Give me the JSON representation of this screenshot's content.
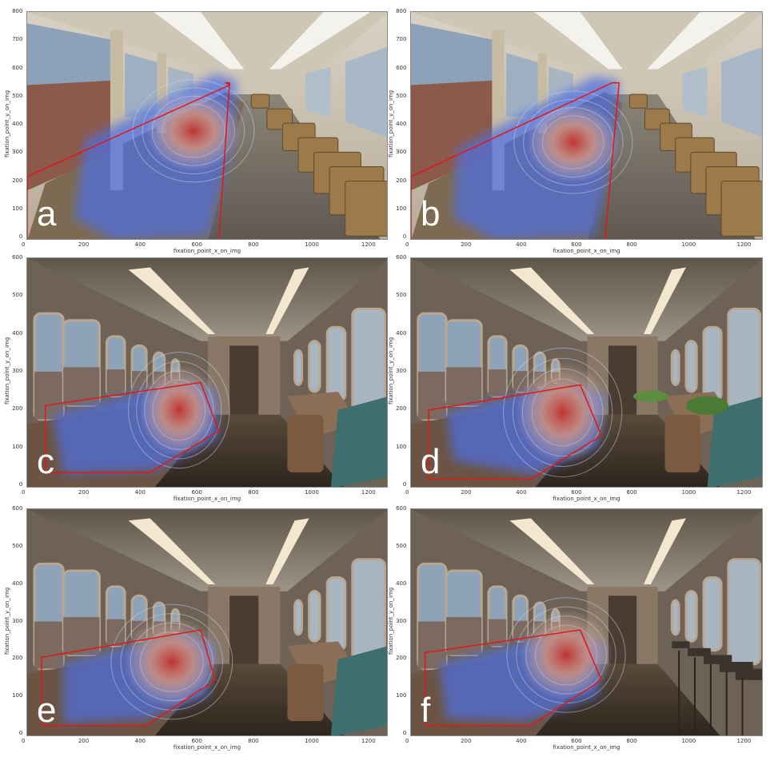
{
  "panels": [
    {
      "id": "a",
      "letter": "a",
      "scene": "old",
      "xlabel": "fixation_point_x_on_img",
      "ylabel": "fixation_point_y_on_img",
      "xticks": [
        "0",
        "200",
        "400",
        "600",
        "800",
        "1000",
        "1200"
      ],
      "yticks": [
        "800",
        "700",
        "600",
        "500",
        "400",
        "300",
        "200",
        "100",
        "0"
      ]
    },
    {
      "id": "b",
      "letter": "b",
      "scene": "old",
      "xlabel": "fixation_point_x_on_img",
      "ylabel": "fixation_point_y_on_img",
      "xticks": [
        "0",
        "200",
        "400",
        "600",
        "800",
        "1000",
        "1200"
      ],
      "yticks": [
        "800",
        "700",
        "600",
        "500",
        "400",
        "300",
        "200",
        "100",
        "0"
      ]
    },
    {
      "id": "c",
      "letter": "c",
      "scene": "new",
      "xlabel": "fixation_point_x_on_img",
      "ylabel": "fixation_point_y_on_img",
      "xticks": [
        "0",
        "200",
        "400",
        "600",
        "800",
        "1000",
        "1200"
      ],
      "yticks": [
        "600",
        "500",
        "400",
        "300",
        "200",
        "100",
        "0"
      ]
    },
    {
      "id": "d",
      "letter": "d",
      "scene": "new",
      "xlabel": "fixation_point_x_on_img",
      "ylabel": "fixation_point_y_on_img",
      "xticks": [
        "0",
        "200",
        "400",
        "600",
        "800",
        "1000",
        "1200"
      ],
      "yticks": [
        "600",
        "500",
        "400",
        "300",
        "200",
        "100",
        "0"
      ]
    },
    {
      "id": "e",
      "letter": "e",
      "scene": "new",
      "xlabel": "fixation_point_x_on_img",
      "ylabel": "fixation_point_y_on_img",
      "xticks": [
        "0",
        "200",
        "400",
        "600",
        "800",
        "1000",
        "1200"
      ],
      "yticks": [
        "600",
        "500",
        "400",
        "300",
        "200",
        "100",
        "0"
      ]
    },
    {
      "id": "f",
      "letter": "f",
      "scene": "new",
      "xlabel": "fixation_point_x_on_img",
      "ylabel": "fixation_point_y_on_img",
      "xticks": [
        "0",
        "200",
        "400",
        "600",
        "800",
        "1000",
        "1200"
      ],
      "yticks": [
        "600",
        "500",
        "400",
        "300",
        "200",
        "100",
        "0"
      ]
    }
  ],
  "colors": {
    "heat_low": "#4f6fe0",
    "heat_high": "#c4302a",
    "aoi_outline": "#e01818"
  }
}
